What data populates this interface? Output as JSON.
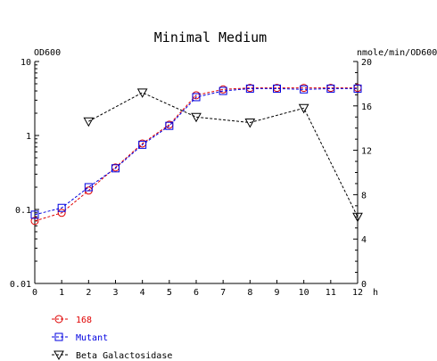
{
  "chart_data": {
    "type": "line",
    "title": "Minimal Medium",
    "x": [
      0,
      1,
      2,
      3,
      4,
      5,
      6,
      7,
      8,
      9,
      10,
      11,
      12
    ],
    "xlabel": "h",
    "xlim": [
      0,
      12
    ],
    "x_ticks": [
      "0",
      "1",
      "2",
      "3",
      "4",
      "5",
      "6",
      "7",
      "8",
      "9",
      "10",
      "11",
      "12"
    ],
    "y_left": {
      "label": "OD600",
      "scale": "log",
      "lim": [
        0.01,
        10
      ],
      "ticks": [
        "10",
        "1",
        "0.1",
        "0.01"
      ]
    },
    "y_right": {
      "label": "nmole/min/OD600",
      "scale": "linear",
      "lim": [
        0,
        20
      ],
      "ticks": [
        "20",
        "16",
        "12",
        "8",
        "4",
        "0"
      ]
    },
    "series": [
      {
        "name": "168",
        "axis": "left",
        "marker": "circle",
        "color": "#e00000",
        "x": [
          0,
          1,
          2,
          3,
          4,
          5,
          6,
          7,
          8,
          9,
          10,
          11,
          12
        ],
        "values": [
          0.07,
          0.09,
          0.18,
          0.37,
          0.78,
          1.4,
          3.5,
          4.2,
          4.4,
          4.4,
          4.4,
          4.4,
          4.4
        ]
      },
      {
        "name": "Mutant",
        "axis": "left",
        "marker": "square",
        "color": "#0000e0",
        "x": [
          0,
          1,
          2,
          3,
          4,
          5,
          6,
          7,
          8,
          9,
          10,
          11,
          12
        ],
        "values": [
          0.085,
          0.105,
          0.2,
          0.36,
          0.75,
          1.35,
          3.3,
          4.0,
          4.3,
          4.3,
          4.2,
          4.3,
          4.3
        ]
      },
      {
        "name": "Beta Galactosidase",
        "axis": "right",
        "marker": "triangle-down",
        "color": "#000000",
        "x": [
          2,
          4,
          6,
          8,
          10,
          12
        ],
        "values": [
          14.6,
          17.2,
          15.0,
          14.5,
          15.8,
          6.0
        ]
      }
    ],
    "legend_position": "bottom-left",
    "grid": false
  }
}
